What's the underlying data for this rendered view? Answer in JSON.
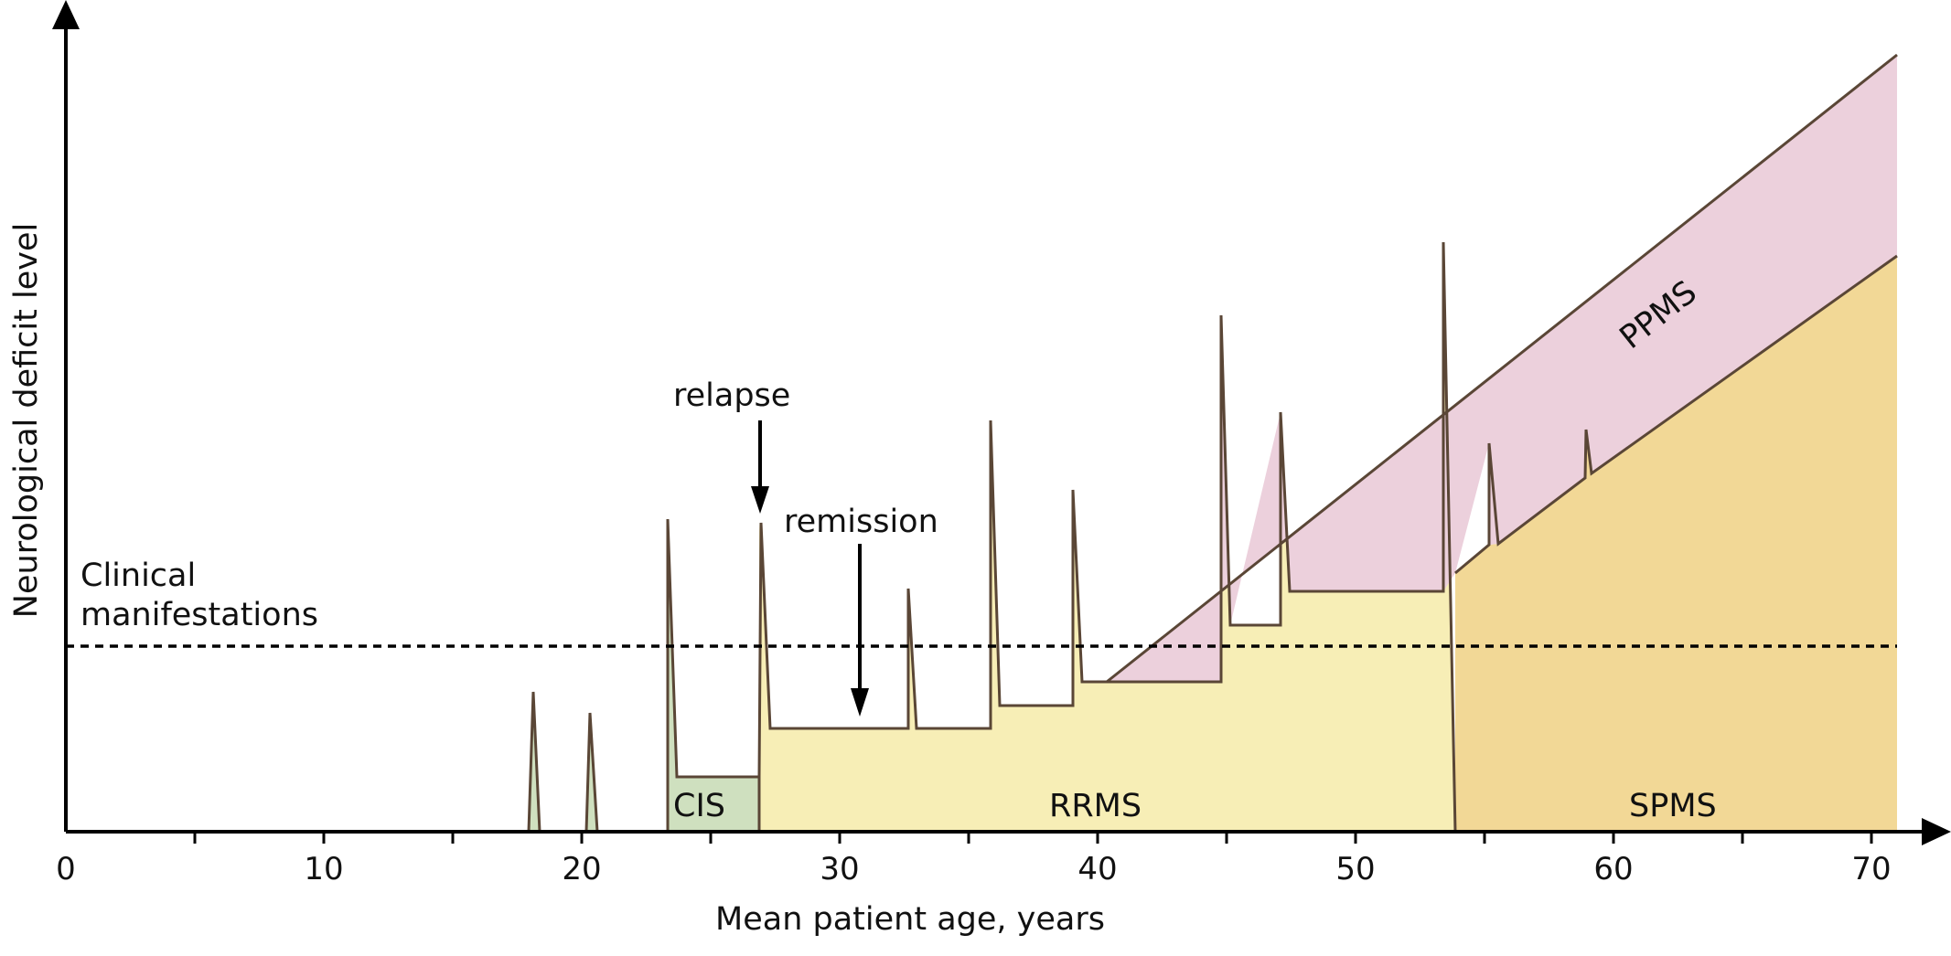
{
  "axes": {
    "y_title": "Neurological deficit level",
    "x_title": "Mean patient age, years",
    "x_range": [
      0,
      72
    ],
    "x_major_ticks": [
      0,
      10,
      20,
      30,
      40,
      50,
      60,
      70
    ],
    "x_minor_ticks": [
      5,
      15,
      25,
      35,
      45,
      55,
      65
    ],
    "x_tick_labels": [
      "0",
      "10",
      "20",
      "30",
      "40",
      "50",
      "60",
      "70"
    ]
  },
  "threshold": {
    "label_line1": "Clinical",
    "label_line2": "manifestations",
    "style": "dashed"
  },
  "annotations": {
    "relapse": "relapse",
    "remission": "remission"
  },
  "regions": {
    "cis": {
      "label": "CIS",
      "color": "#cfe0bf"
    },
    "rrms": {
      "label": "RRMS",
      "color": "#f7eeb6"
    },
    "spms": {
      "label": "SPMS",
      "color": "#f2d896"
    },
    "ppms": {
      "label": "PPMS",
      "color": "#ecd0dc"
    }
  },
  "colors": {
    "axis": "#000000",
    "outline": "#5a4636"
  }
}
